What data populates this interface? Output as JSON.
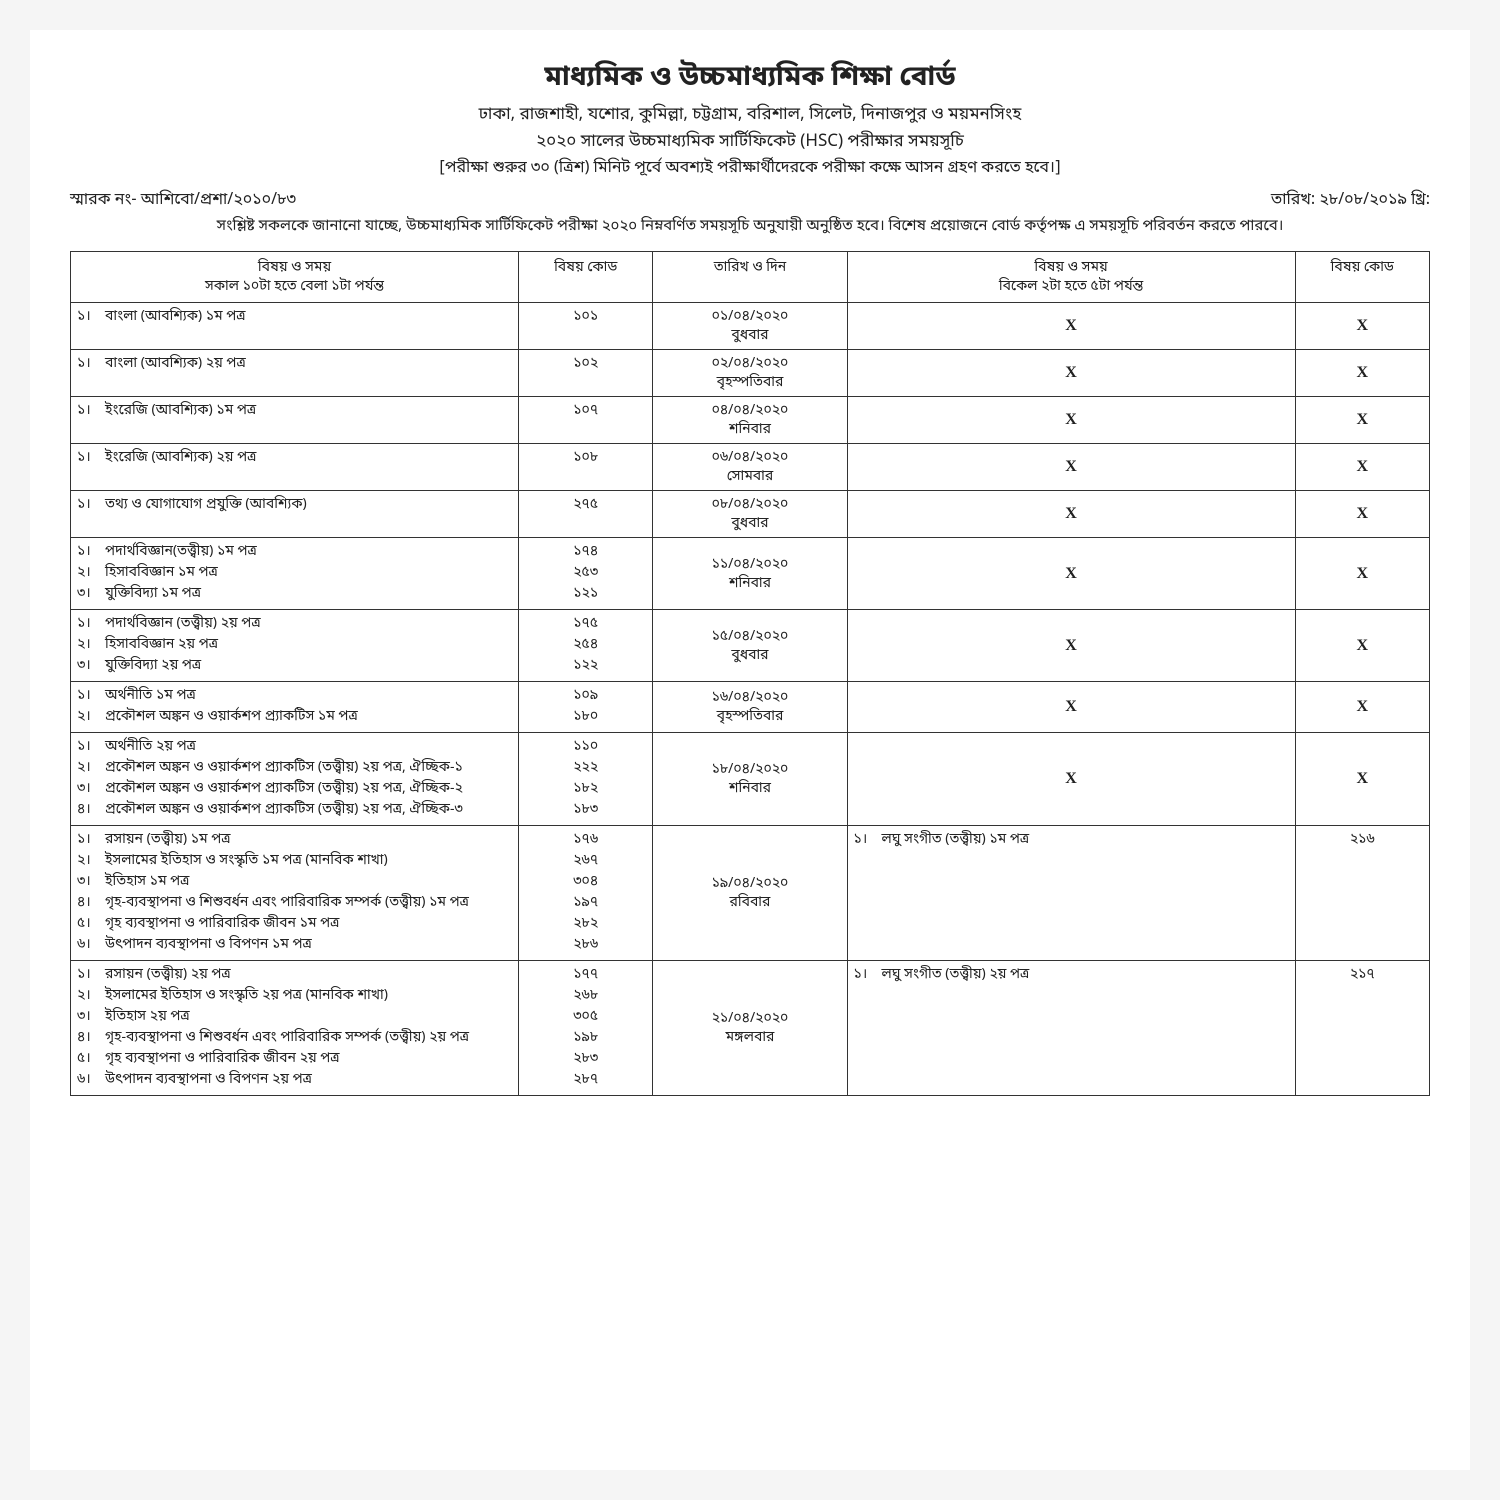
{
  "header": {
    "title": "মাধ্যমিক ও উচ্চমাধ্যমিক শিক্ষা বোর্ড",
    "boards": "ঢাকা, রাজশাহী, যশোর, কুমিল্লা, চট্টগ্রাম, বরিশাল, সিলেট, দিনাজপুর ও ময়মনসিংহ",
    "exam_title": "২০২০ সালের উচ্চমাধ্যমিক সার্টিফিকেট (HSC) পরীক্ষার সময়সূচি",
    "note": "[পরীক্ষা শুরুর ৩০ (ত্রিশ) মিনিট পূর্বে অবশ্যই পরীক্ষার্থীদেরকে পরীক্ষা কক্ষে আসন গ্রহণ করতে হবে।]",
    "memo_no": "স্মারক নং- আশিবো/প্রশা/২০১০/৮৩",
    "date": "তারিখ: ২৮/০৮/২০১৯ খ্রি:",
    "intro": "সংশ্লিষ্ট সকলকে জানানো যাচ্ছে, উচ্চমাধ্যমিক সার্টিফিকেট পরীক্ষা ২০২০ নিম্নবর্ণিত সময়সূচি অনুযায়ী অনুষ্ঠিত হবে। বিশেষ প্রয়োজনে বোর্ড কর্তৃপক্ষ এ সময়সূচি পরিবর্তন করতে পারবে।"
  },
  "columns": {
    "morning": "বিষয় ও সময়\nসকাল ১০টা হতে বেলা ১টা পর্যন্ত",
    "code1": "বিষয় কোড",
    "date": "তারিখ ও দিন",
    "afternoon": "বিষয় ও সময়\nবিকেল ২টা হতে ৫টা পর্যন্ত",
    "code2": "বিষয় কোড"
  },
  "rows": [
    {
      "morning": [
        {
          "sl": "১।",
          "name": "বাংলা (আবশ্যিক) ১ম পত্র"
        }
      ],
      "codes": [
        "১০১"
      ],
      "date": "০১/০৪/২০২০\nবুধবার",
      "afternoon_x": true,
      "code2_x": true
    },
    {
      "morning": [
        {
          "sl": "১।",
          "name": "বাংলা (আবশ্যিক) ২য় পত্র"
        }
      ],
      "codes": [
        "১০২"
      ],
      "date": "০২/০৪/২০২০\nবৃহস্পতিবার",
      "afternoon_x": true,
      "code2_x": true
    },
    {
      "morning": [
        {
          "sl": "১।",
          "name": "ইংরেজি (আবশ্যিক) ১ম পত্র"
        }
      ],
      "codes": [
        "১০৭"
      ],
      "date": "০৪/০৪/২০২০\nশনিবার",
      "afternoon_x": true,
      "code2_x": true
    },
    {
      "morning": [
        {
          "sl": "১।",
          "name": "ইংরেজি (আবশ্যিক) ২য় পত্র"
        }
      ],
      "codes": [
        "১০৮"
      ],
      "date": "০৬/০৪/২০২০\nসোমবার",
      "afternoon_x": true,
      "code2_x": true
    },
    {
      "morning": [
        {
          "sl": "১।",
          "name": "তথ্য ও যোগাযোগ প্রযুক্তি (আবশ্যিক)"
        }
      ],
      "codes": [
        "২৭৫"
      ],
      "date": "০৮/০৪/২০২০\nবুধবার",
      "afternoon_x": true,
      "code2_x": true
    },
    {
      "morning": [
        {
          "sl": "১।",
          "name": "পদার্থবিজ্ঞান(তত্ত্বীয়) ১ম পত্র"
        },
        {
          "sl": "২।",
          "name": "হিসাববিজ্ঞান ১ম পত্র"
        },
        {
          "sl": "৩।",
          "name": "যুক্তিবিদ্যা ১ম পত্র"
        }
      ],
      "codes": [
        "১৭৪",
        "২৫৩",
        "১২১"
      ],
      "date": "১১/০৪/২০২০\nশনিবার",
      "afternoon_x": true,
      "code2_x": true
    },
    {
      "morning": [
        {
          "sl": "১।",
          "name": "পদার্থবিজ্ঞান (তত্ত্বীয়) ২য় পত্র"
        },
        {
          "sl": "২।",
          "name": "হিসাববিজ্ঞান ২য় পত্র"
        },
        {
          "sl": "৩।",
          "name": "যুক্তিবিদ্যা ২য় পত্র"
        }
      ],
      "codes": [
        "১৭৫",
        "২৫৪",
        "১২২"
      ],
      "date": "১৫/০৪/২০২০\nবুধবার",
      "afternoon_x": true,
      "code2_x": true
    },
    {
      "morning": [
        {
          "sl": "১।",
          "name": "অর্থনীতি ১ম পত্র"
        },
        {
          "sl": "২।",
          "name": "প্রকৌশল অঙ্কন ও ওয়ার্কশপ প্র্যাকটিস ১ম পত্র"
        }
      ],
      "codes": [
        "১০৯",
        "১৮০"
      ],
      "date": "১৬/০৪/২০২০\nবৃহস্পতিবার",
      "afternoon_x": true,
      "code2_x": true
    },
    {
      "morning": [
        {
          "sl": "১।",
          "name": "অর্থনীতি ২য় পত্র"
        },
        {
          "sl": "২।",
          "name": "প্রকৌশল অঙ্কন ও ওয়ার্কশপ প্র্যাকটিস (তত্ত্বীয়) ২য় পত্র, ঐচ্ছিক-১"
        },
        {
          "sl": "৩।",
          "name": "প্রকৌশল অঙ্কন ও ওয়ার্কশপ প্র্যাকটিস (তত্ত্বীয়) ২য় পত্র, ঐচ্ছিক-২"
        },
        {
          "sl": "৪।",
          "name": "প্রকৌশল অঙ্কন ও ওয়ার্কশপ প্র্যাকটিস (তত্ত্বীয়) ২য় পত্র, ঐচ্ছিক-৩"
        }
      ],
      "codes": [
        "১১০",
        "২২২",
        "১৮২",
        "১৮৩"
      ],
      "date": "১৮/০৪/২০২০\nশনিবার",
      "afternoon_x": true,
      "code2_x": true
    },
    {
      "morning": [
        {
          "sl": "১।",
          "name": "রসায়ন (তত্ত্বীয়) ১ম পত্র"
        },
        {
          "sl": "২।",
          "name": "ইসলামের ইতিহাস ও সংস্কৃতি ১ম পত্র (মানবিক শাখা)"
        },
        {
          "sl": "৩।",
          "name": "ইতিহাস ১ম পত্র"
        },
        {
          "sl": "৪।",
          "name": "গৃহ-ব্যবস্থাপনা ও শিশুবর্ধন এবং পারিবারিক সম্পর্ক (তত্ত্বীয়) ১ম পত্র"
        },
        {
          "sl": "৫।",
          "name": "গৃহ ব্যবস্থাপনা ও পারিবারিক জীবন ১ম পত্র"
        },
        {
          "sl": "৬।",
          "name": "উৎপাদন ব্যবস্থাপনা ও বিপণন ১ম পত্র"
        }
      ],
      "codes": [
        "১৭৬",
        "২৬৭",
        "৩০৪",
        "১৯৭",
        "২৮২",
        "২৮৬"
      ],
      "date": "১৯/০৪/২০২০\nরবিবার",
      "afternoon": [
        {
          "sl": "১।",
          "name": "লঘু সংগীত (তত্ত্বীয়) ১ম পত্র"
        }
      ],
      "codes2": [
        "২১৬"
      ]
    },
    {
      "morning": [
        {
          "sl": "১।",
          "name": "রসায়ন (তত্ত্বীয়) ২য় পত্র"
        },
        {
          "sl": "২।",
          "name": "ইসলামের ইতিহাস ও সংস্কৃতি ২য় পত্র (মানবিক শাখা)"
        },
        {
          "sl": "৩।",
          "name": "ইতিহাস ২য় পত্র"
        },
        {
          "sl": "৪।",
          "name": "গৃহ-ব্যবস্থাপনা ও শিশুবর্ধন এবং পারিবারিক সম্পর্ক (তত্ত্বীয়) ২য় পত্র"
        },
        {
          "sl": "৫।",
          "name": "গৃহ ব্যবস্থাপনা ও পারিবারিক জীবন ২য় পত্র"
        },
        {
          "sl": "৬।",
          "name": "উৎপাদন ব্যবস্থাপনা ও বিপণন ২য় পত্র"
        }
      ],
      "codes": [
        "১৭৭",
        "২৬৮",
        "৩০৫",
        "১৯৮",
        "২৮৩",
        "২৮৭"
      ],
      "date": "২১/০৪/২০২০\nমঙ্গলবার",
      "afternoon": [
        {
          "sl": "১।",
          "name": "লঘু সংগীত (তত্ত্বীয়) ২য় পত্র"
        }
      ],
      "codes2": [
        "২১৭"
      ]
    }
  ]
}
